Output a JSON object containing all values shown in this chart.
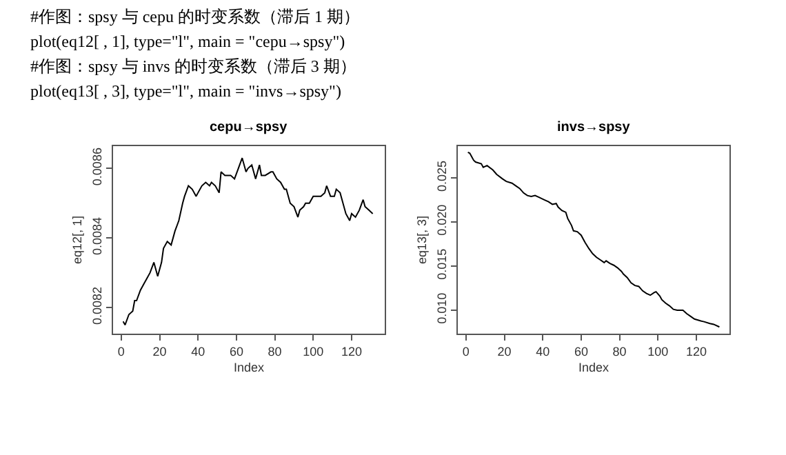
{
  "chart_data": [
    {
      "type": "line",
      "title": "cepu→spsy",
      "xlabel": "Index",
      "ylabel": "eq12[, 1]",
      "annotations": [
        "#作图：spsy 与 cepu 的时变系数（滞后 1 期）",
        "plot(eq12[ , 1], type=\"l\", main = \"cepu→spsy\")",
        "#作图：spsy 与 invs 的时变系数（滞后 3 期）",
        "plot(eq13[ , 3], type=\"l\", main = \"invs→spsy\")"
      ],
      "xlim": [
        -4.24,
        137.24
      ],
      "xticks": [
        0,
        20,
        40,
        60,
        80,
        100,
        120
      ],
      "ylim": [
        0.008125,
        0.008664
      ],
      "yticks": [
        0.0082,
        0.0084,
        0.0086
      ],
      "marker": "none",
      "line_style": "solid",
      "series": [
        {
          "color": "#000000",
          "x": [
            1,
            2,
            4,
            6,
            7,
            8,
            10,
            12,
            13,
            15,
            17,
            19,
            21,
            22,
            24,
            26,
            28,
            30,
            32,
            33,
            35,
            37,
            39,
            40,
            42,
            44,
            46,
            47,
            49,
            51,
            52,
            54,
            55,
            57,
            59,
            61,
            63,
            65,
            66,
            68,
            70,
            72,
            73,
            75,
            78,
            79,
            81,
            83,
            85,
            86,
            88,
            90,
            92,
            93,
            95,
            96,
            98,
            100,
            102,
            104,
            106,
            107,
            109,
            111,
            112,
            114,
            115,
            117,
            119,
            120,
            122,
            124,
            126,
            127,
            129,
            131
          ],
          "values": [
            0.00816,
            0.00815,
            0.00818,
            0.00819,
            0.00822,
            0.00822,
            0.00825,
            0.00827,
            0.00828,
            0.0083,
            0.00833,
            0.00829,
            0.00833,
            0.00837,
            0.00839,
            0.00838,
            0.00842,
            0.00845,
            0.0085,
            0.00852,
            0.00855,
            0.00854,
            0.00852,
            0.00853,
            0.00855,
            0.00856,
            0.00855,
            0.00856,
            0.00855,
            0.00853,
            0.00859,
            0.00858,
            0.00858,
            0.00858,
            0.00857,
            0.0086,
            0.00863,
            0.00859,
            0.0086,
            0.00861,
            0.00857,
            0.00861,
            0.00858,
            0.00858,
            0.00859,
            0.00859,
            0.00857,
            0.00856,
            0.00854,
            0.00854,
            0.0085,
            0.00849,
            0.00846,
            0.00848,
            0.00849,
            0.0085,
            0.0085,
            0.00852,
            0.00852,
            0.00852,
            0.00853,
            0.00855,
            0.00852,
            0.00852,
            0.00854,
            0.00853,
            0.00851,
            0.00847,
            0.00845,
            0.00847,
            0.00846,
            0.00848,
            0.00851,
            0.00849,
            0.00848,
            0.00847
          ]
        }
      ]
    },
    {
      "type": "line",
      "title": "invs→spsy",
      "xlabel": "Index",
      "ylabel": "eq13[, 3]",
      "xlim": [
        -4.24,
        137.24
      ],
      "xticks": [
        0,
        20,
        40,
        60,
        80,
        100,
        120
      ],
      "ylim": [
        0.00734,
        0.0286
      ],
      "yticks": [
        {
          "value": 0.01,
          "label": "0.010"
        },
        0.015,
        {
          "value": 0.02,
          "label": "0.020"
        },
        0.025
      ],
      "marker": "none",
      "line_style": "solid",
      "series": [
        {
          "color": "#000000",
          "x": [
            1,
            2,
            4,
            5,
            8,
            9,
            11,
            14,
            16,
            19,
            21,
            24,
            26,
            28,
            30,
            32,
            34,
            36,
            38,
            41,
            43,
            45,
            47,
            48,
            50,
            52,
            53,
            55,
            56,
            58,
            60,
            62,
            64,
            66,
            68,
            70,
            72,
            73,
            75,
            77,
            79,
            81,
            82,
            84,
            86,
            88,
            90,
            92,
            94,
            96,
            98,
            99,
            101,
            102,
            104,
            106,
            108,
            110,
            113,
            115,
            117,
            119,
            122,
            124,
            127,
            129,
            132
          ],
          "values": [
            0.0279,
            0.0278,
            0.027,
            0.0268,
            0.0266,
            0.0262,
            0.0264,
            0.0259,
            0.0254,
            0.0249,
            0.0246,
            0.0244,
            0.0241,
            0.0238,
            0.0233,
            0.023,
            0.0229,
            0.023,
            0.0228,
            0.0225,
            0.0223,
            0.022,
            0.0221,
            0.0217,
            0.0213,
            0.0211,
            0.0204,
            0.0196,
            0.019,
            0.0189,
            0.0185,
            0.0177,
            0.017,
            0.0164,
            0.016,
            0.0157,
            0.0154,
            0.0156,
            0.0153,
            0.0151,
            0.0148,
            0.0144,
            0.0141,
            0.0137,
            0.0131,
            0.0128,
            0.0127,
            0.0122,
            0.0119,
            0.0117,
            0.012,
            0.0121,
            0.0116,
            0.0112,
            0.0108,
            0.0105,
            0.0101,
            0.01,
            0.01,
            0.0096,
            0.0093,
            0.009,
            0.0088,
            0.0087,
            0.0085,
            0.0084,
            0.0081
          ]
        }
      ]
    }
  ]
}
